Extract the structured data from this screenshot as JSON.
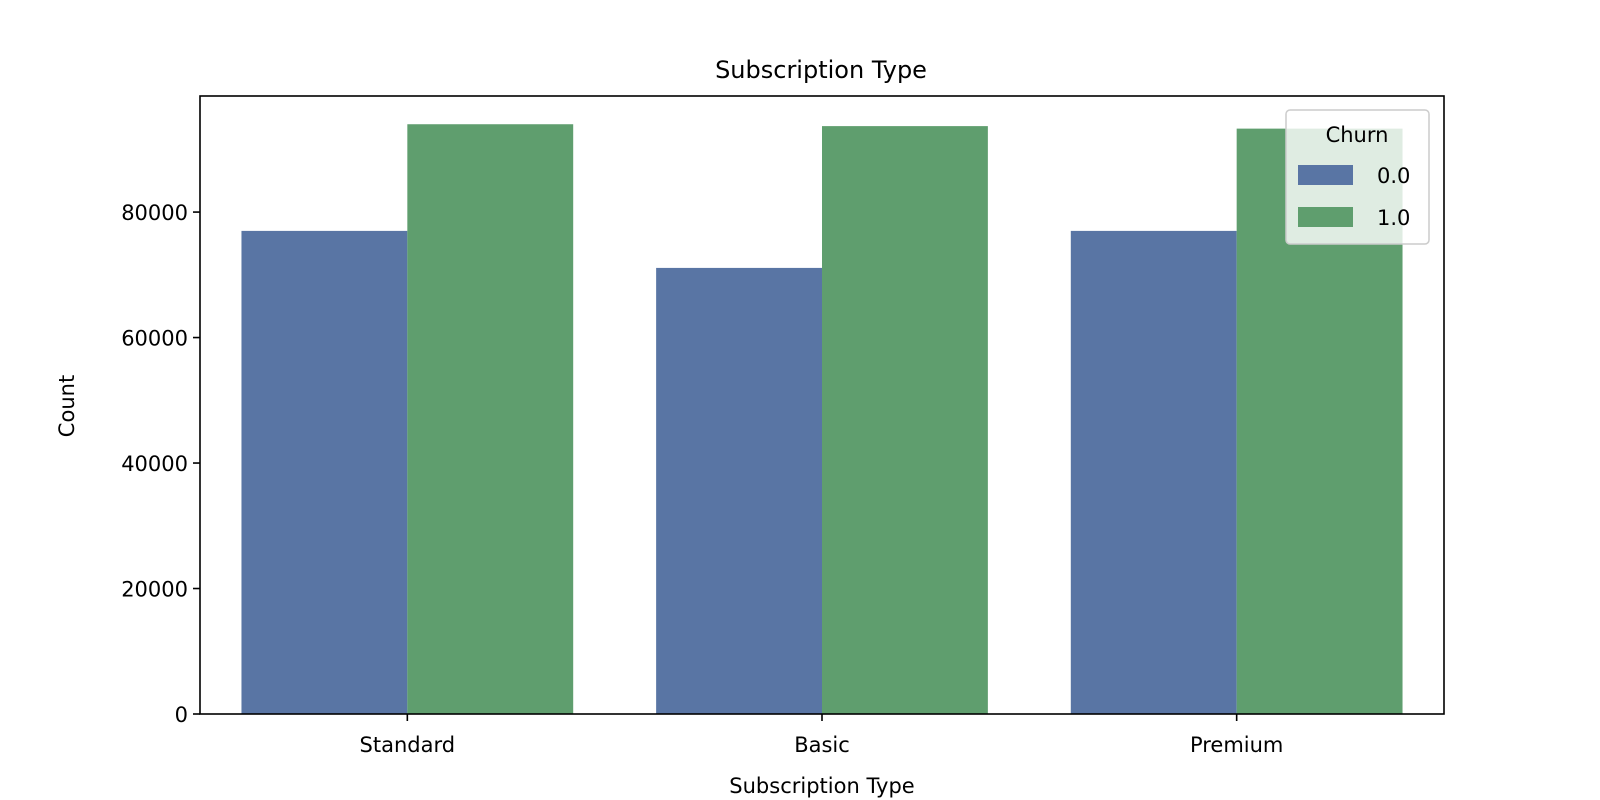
{
  "chart_data": {
    "type": "bar",
    "title": "Subscription Type",
    "xlabel": "Subscription Type",
    "ylabel": "Count",
    "categories": [
      "Standard",
      "Basic",
      "Premium"
    ],
    "series": [
      {
        "name": "0.0",
        "values": [
          77000,
          71100,
          77000
        ],
        "color": "#5975a4"
      },
      {
        "name": "1.0",
        "values": [
          94000,
          93700,
          93300
        ],
        "color": "#5f9e6e"
      }
    ],
    "ylim": [
      0,
      98500
    ],
    "yticks": [
      0,
      20000,
      40000,
      60000,
      80000
    ],
    "legend": {
      "title": "Churn",
      "placement": "top-right"
    },
    "grid": false
  }
}
